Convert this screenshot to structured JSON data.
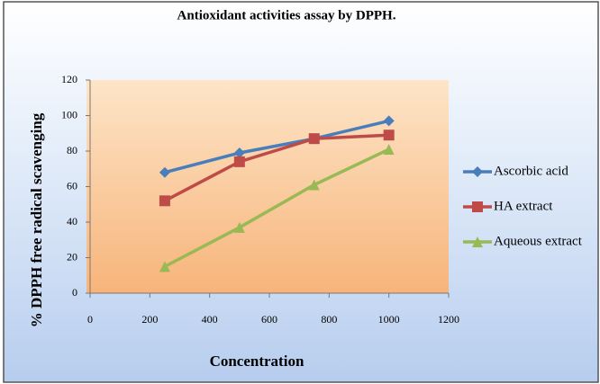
{
  "chart_data": {
    "type": "line",
    "title": "Antioxidant activities assay by DPPH.",
    "xlabel": "Concentration",
    "ylabel": "% DPPH free radical scavenging",
    "x": [
      250,
      500,
      750,
      1000
    ],
    "series": [
      {
        "name": "Ascorbic acid",
        "color": "#4a7ebb",
        "marker": "diamond",
        "values": [
          68,
          79,
          87,
          97
        ]
      },
      {
        "name": "HA extract",
        "color": "#be4b48",
        "marker": "square",
        "values": [
          52,
          74,
          87,
          89
        ]
      },
      {
        "name": "Aqueous extract",
        "color": "#98b954",
        "marker": "triangle",
        "values": [
          15,
          37,
          61,
          81
        ]
      }
    ],
    "xlim": [
      0,
      1200
    ],
    "xticks": [
      0,
      200,
      400,
      600,
      800,
      1000,
      1200
    ],
    "ylim": [
      0,
      120
    ],
    "yticks": [
      0,
      20,
      40,
      60,
      80,
      100,
      120
    ],
    "grid": false,
    "legend": "right"
  }
}
